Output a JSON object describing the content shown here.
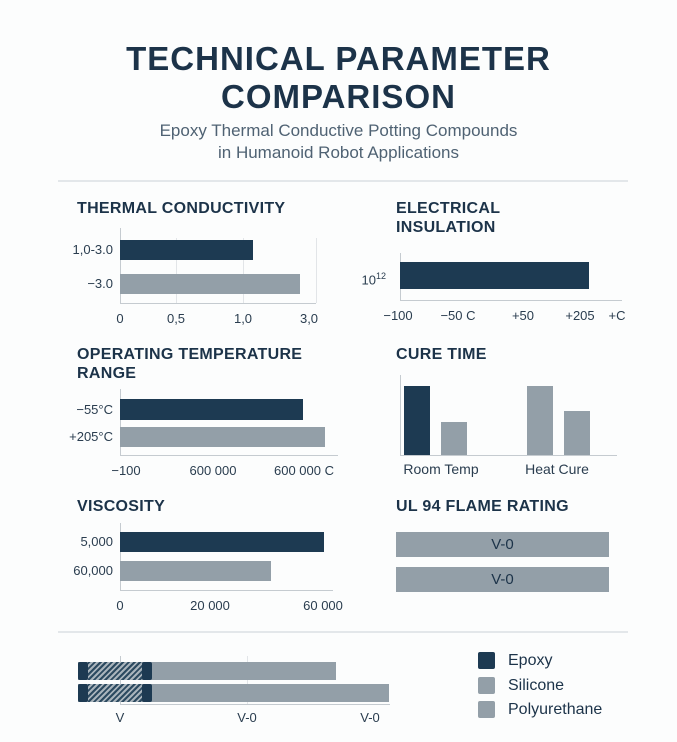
{
  "header": {
    "title_line1": "TECHNICAL PARAMETER",
    "title_line2": "COMPARISON",
    "subtitle_line1": "Epoxy Thermal Conductive Potting Compounds",
    "subtitle_line2": "in Humanoid Robot Applications"
  },
  "colors": {
    "epoxy": "#1d3a52",
    "silicone": "#939fa8",
    "polyurethane": "#939fa8"
  },
  "chart_data": [
    {
      "id": "thermal",
      "type": "bar",
      "orientation": "horizontal",
      "title": "THERMAL CONDUCTIVITY",
      "ticks": [
        "0",
        "0,5",
        "1,0",
        "3,0"
      ],
      "bars": [
        {
          "label": "1,0-3.0",
          "series": "Epoxy",
          "value_fraction": 0.68
        },
        {
          "label": "−3.0",
          "series": "Silicone",
          "value_fraction": 0.92
        }
      ]
    },
    {
      "id": "electrical",
      "type": "bar",
      "orientation": "horizontal",
      "title_line1": "ELECTRICAL",
      "title_line2": "INSULATION",
      "ticks": [
        "−100",
        "−50 C",
        "+50",
        "+205",
        "+C"
      ],
      "bars": [
        {
          "label_base": "10",
          "label_exp": "12",
          "series": "Epoxy",
          "value_fraction": 0.85
        }
      ]
    },
    {
      "id": "operating",
      "type": "bar",
      "orientation": "horizontal",
      "title_line1": "OPERATING TEMPERATURE",
      "title_line2": "RANGE",
      "ticks": [
        "−100",
        "600 000",
        "600 000 C"
      ],
      "bars": [
        {
          "label": "−55°C",
          "series": "Epoxy",
          "value_fraction": 0.84
        },
        {
          "label": "+205°C",
          "series": "Silicone",
          "value_fraction": 0.94
        }
      ]
    },
    {
      "id": "cure",
      "type": "bar",
      "orientation": "vertical",
      "title": "CURE TIME",
      "categories": [
        "Room Temp",
        "Heat Cure"
      ],
      "groups": [
        [
          {
            "series": "Epoxy",
            "value_fraction": 0.86
          },
          {
            "series": "Silicone",
            "value_fraction": 0.41
          }
        ],
        [
          {
            "series": "Silicone",
            "value_fraction": 0.86
          },
          {
            "series": "Silicone",
            "value_fraction": 0.55
          }
        ]
      ]
    },
    {
      "id": "viscosity",
      "type": "bar",
      "orientation": "horizontal",
      "title": "VISCOSITY",
      "ticks": [
        "0",
        "20 000",
        "60 000"
      ],
      "bars": [
        {
          "label": "5,000",
          "series": "Epoxy",
          "value_fraction": 0.96
        },
        {
          "label": "60,000",
          "series": "Silicone",
          "value_fraction": 0.71
        }
      ]
    },
    {
      "id": "ul94",
      "type": "table",
      "title": "UL 94 FLAME RATING",
      "values": [
        "V-0",
        "V-0"
      ]
    },
    {
      "id": "bottom",
      "type": "bar",
      "orientation": "horizontal",
      "ticks": [
        "V",
        "V-0",
        "V-0"
      ],
      "bars": [
        {
          "value_fraction": 0.83
        },
        {
          "value_fraction": 1.0
        }
      ]
    }
  ],
  "legend": [
    {
      "label": "Epoxy",
      "color": "#1d3a52"
    },
    {
      "label": "Silicone",
      "color": "#939fa8"
    },
    {
      "label": "Polyurethane",
      "color": "#939fa8"
    }
  ]
}
